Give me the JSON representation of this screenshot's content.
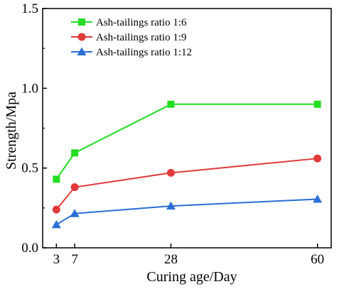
{
  "chart_data": {
    "type": "line",
    "xlabel": "Curing age/Day",
    "ylabel": "Strength/Mpa",
    "x": [
      3,
      7,
      28,
      60
    ],
    "xticks": [
      "3",
      "7",
      "28",
      "60"
    ],
    "yticks": [
      "0.0",
      "0.5",
      "1.0",
      "1.5"
    ],
    "xlim": [
      0,
      63
    ],
    "ylim": [
      0,
      1.5
    ],
    "grid": false,
    "legend_position": "top-left",
    "series": [
      {
        "name": "Ash-tailings ratio 1:6",
        "color": "#22dd22",
        "marker": "square",
        "values": [
          0.43,
          0.595,
          0.9,
          0.9
        ]
      },
      {
        "name": "Ash-tailings ratio 1:9",
        "color": "#e03a3a",
        "marker": "circle",
        "values": [
          0.24,
          0.38,
          0.47,
          0.56
        ]
      },
      {
        "name": "Ash-tailings ratio 1:12",
        "color": "#2a6fd6",
        "marker": "triangle",
        "values": [
          0.145,
          0.215,
          0.262,
          0.305
        ]
      }
    ]
  }
}
